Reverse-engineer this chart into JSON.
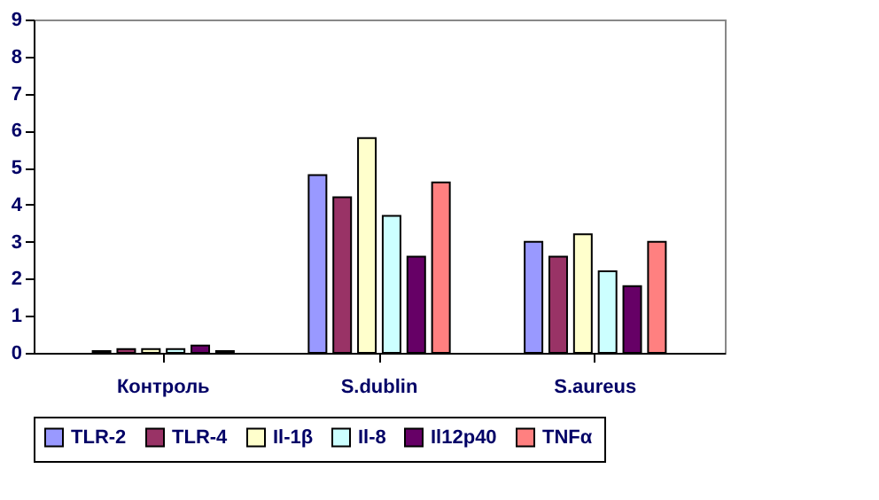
{
  "chart_data": {
    "type": "bar",
    "categories": [
      "Контроль",
      "S.dublin",
      "S.aureus"
    ],
    "series": [
      {
        "name": "TLR-2",
        "color": "#9999ff",
        "values": [
          0.05,
          4.8,
          3.0
        ]
      },
      {
        "name": "TLR-4",
        "color": "#993366",
        "values": [
          0.1,
          4.2,
          2.6
        ]
      },
      {
        "name": "Il-1β",
        "color": "#ffffcc",
        "values": [
          0.1,
          5.8,
          3.2
        ]
      },
      {
        "name": "Il-8",
        "color": "#ccffff",
        "values": [
          0.1,
          3.7,
          2.2
        ]
      },
      {
        "name": "Il12p40",
        "color": "#660066",
        "values": [
          0.2,
          2.6,
          1.8
        ]
      },
      {
        "name": "TNFα",
        "color": "#ff8080",
        "values": [
          0.05,
          4.6,
          3.0
        ]
      }
    ],
    "ylim": [
      0,
      9
    ],
    "yticks": [
      0,
      1,
      2,
      3,
      4,
      5,
      6,
      7,
      8,
      9
    ],
    "grid": false,
    "legend": "bottom"
  }
}
